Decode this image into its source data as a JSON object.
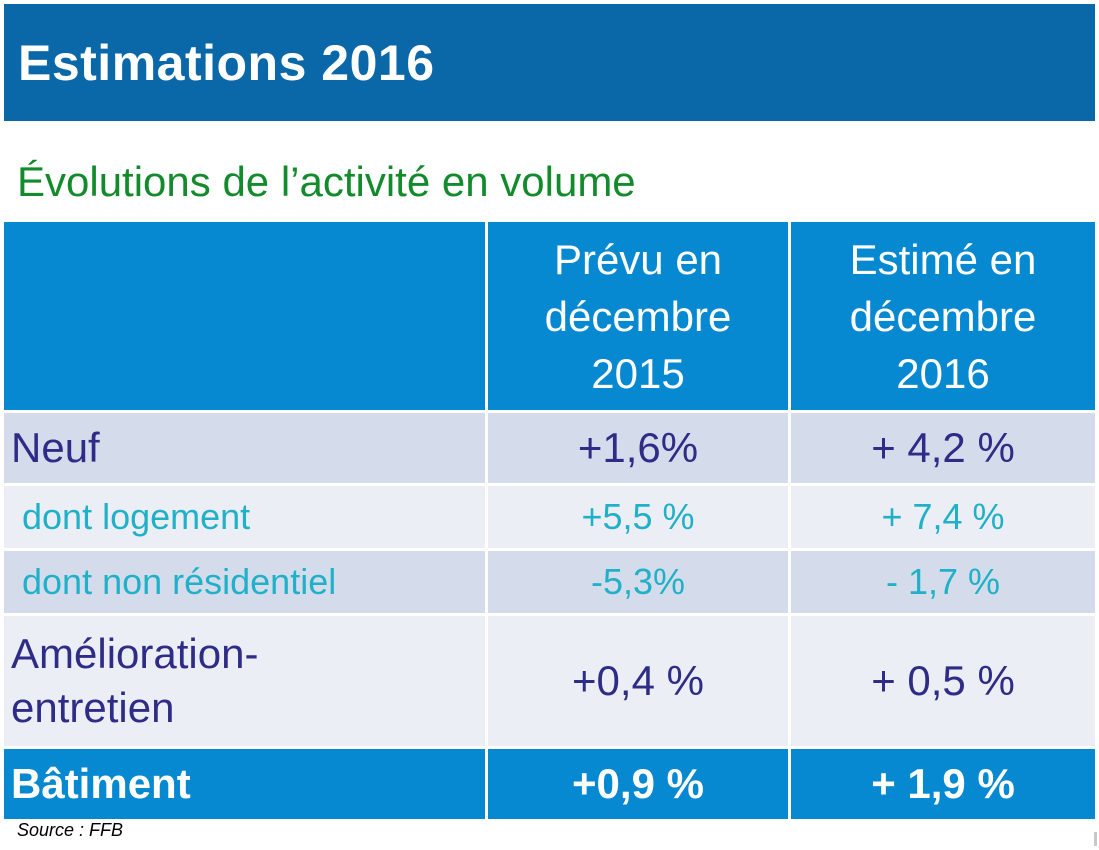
{
  "header": {
    "title": "Estimations 2016"
  },
  "subtitle": "Évolutions de l’activité en volume",
  "table": {
    "columns": [
      "",
      "Prévu en décembre 2015",
      "Estimé en décembre 2016"
    ],
    "column_lines": {
      "prevu": [
        "Prévu en",
        "décembre",
        "2015"
      ],
      "estime": [
        "Estimé en",
        "décembre",
        "2016"
      ]
    },
    "rows": [
      {
        "label": "Neuf",
        "prevu": "+1,6%",
        "estime": "+ 4,2 %"
      },
      {
        "label": "dont logement",
        "prevu": "+5,5 %",
        "estime": "+ 7,4 %"
      },
      {
        "label": "dont non résidentiel",
        "prevu": "-5,3%",
        "estime": "- 1,7 %"
      },
      {
        "label_lines": [
          "Amélioration-",
          "entretien"
        ],
        "prevu": "+0,4 %",
        "estime": "+ 0,5 %"
      },
      {
        "label": "Bâtiment",
        "prevu": "+0,9 %",
        "estime": "+ 1,9 %"
      }
    ]
  },
  "source": "Source : FFB",
  "colors": {
    "title_bar": "#0a68a8",
    "header_cells": "#0789d2",
    "subtitle_green": "#138a2b",
    "row_dark": "#d4dcec",
    "row_light": "#eceef6",
    "text_navy": "#2e2c86",
    "text_teal": "#20b1c8"
  }
}
